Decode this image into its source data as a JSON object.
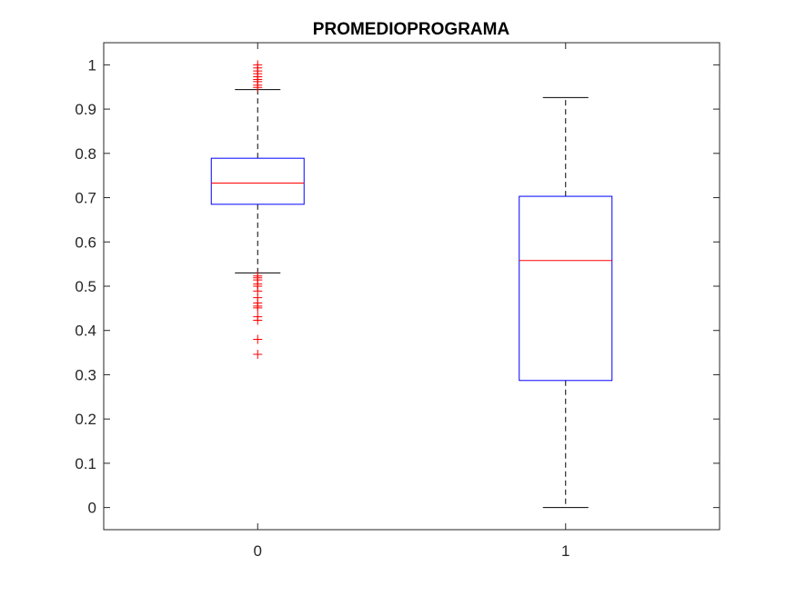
{
  "chart_data": {
    "type": "box",
    "title": "PROMEDIOPROGRAMA",
    "xlabel": "",
    "ylabel": "",
    "categories": [
      "0",
      "1"
    ],
    "ylim": [
      -0.05,
      1.05
    ],
    "yticks": [
      0,
      0.1,
      0.2,
      0.3,
      0.4,
      0.5,
      0.6,
      0.7,
      0.8,
      0.9,
      1
    ],
    "ytick_labels": [
      "0",
      "0.1",
      "0.2",
      "0.3",
      "0.4",
      "0.5",
      "0.6",
      "0.7",
      "0.8",
      "0.9",
      "1"
    ],
    "grid": false,
    "boxes": [
      {
        "category": "0",
        "whisker_low": 0.53,
        "q1": 0.685,
        "median": 0.733,
        "q3": 0.789,
        "whisker_high": 0.944,
        "outliers": [
          0.523,
          0.519,
          0.514,
          0.505,
          0.5,
          0.489,
          0.474,
          0.462,
          0.455,
          0.451,
          0.431,
          0.423,
          0.38,
          0.346,
          0.949,
          0.954,
          0.962,
          0.967,
          0.973,
          0.98,
          0.986,
          0.993,
          1.0
        ]
      },
      {
        "category": "1",
        "whisker_low": 0.0,
        "q1": 0.287,
        "median": 0.558,
        "q3": 0.703,
        "whisker_high": 0.926,
        "outliers": []
      }
    ],
    "colors": {
      "box": "#0000ff",
      "median": "#ff0000",
      "whisker": "#000000",
      "outlier": "#ff0000",
      "axes": "#262626"
    }
  }
}
